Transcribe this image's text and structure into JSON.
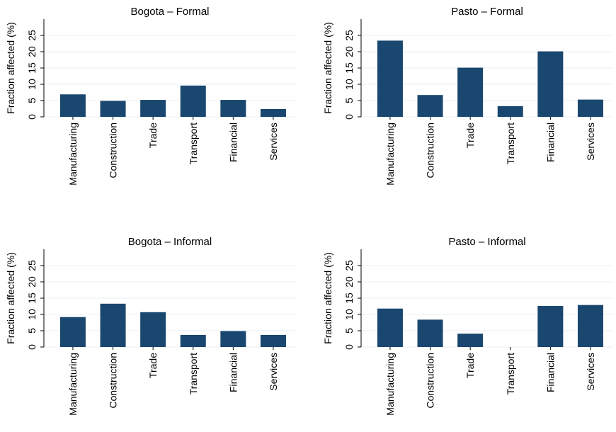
{
  "chart_data": [
    {
      "type": "bar",
      "title": "Bogota – Formal",
      "y_label": "Fraction affected (%)",
      "categories": [
        "Manufacturing",
        "Construction",
        "Trade",
        "Transport",
        "Financial",
        "Services"
      ],
      "values": [
        6.9,
        4.9,
        5.2,
        9.6,
        5.2,
        2.4
      ],
      "color": "#1a476f",
      "ylim": [
        0,
        30
      ],
      "yticks": [
        0,
        5,
        10,
        15,
        20,
        25
      ],
      "grid": true
    },
    {
      "type": "bar",
      "title": "Pasto – Formal",
      "y_label": "Fraction affected (%)",
      "categories": [
        "Manufacturing",
        "Construction",
        "Trade",
        "Transport",
        "Financial",
        "Services"
      ],
      "values": [
        23.4,
        6.7,
        15.1,
        3.3,
        20.1,
        5.3
      ],
      "color": "#1a476f",
      "ylim": [
        0,
        30
      ],
      "yticks": [
        0,
        5,
        10,
        15,
        20,
        25
      ],
      "grid": true
    },
    {
      "type": "bar",
      "title": "Bogota – Informal",
      "y_label": "Fraction affected (%)",
      "categories": [
        "Manufacturing",
        "Construction",
        "Trade",
        "Transport",
        "Financial",
        "Services"
      ],
      "values": [
        9.2,
        13.3,
        10.7,
        3.7,
        4.9,
        3.7
      ],
      "color": "#1a476f",
      "ylim": [
        0,
        30
      ],
      "yticks": [
        0,
        5,
        10,
        15,
        20,
        25
      ],
      "grid": true
    },
    {
      "type": "bar",
      "title": "Pasto – Informal",
      "y_label": "Fraction affected (%)",
      "categories": [
        "Manufacturing",
        "Construction",
        "Trade",
        "Transport",
        "Financial",
        "Services"
      ],
      "values": [
        11.8,
        8.4,
        4.1,
        0,
        12.6,
        12.9
      ],
      "color": "#1a476f",
      "ylim": [
        0,
        30
      ],
      "yticks": [
        0,
        5,
        10,
        15,
        20,
        25
      ],
      "grid": true
    }
  ]
}
